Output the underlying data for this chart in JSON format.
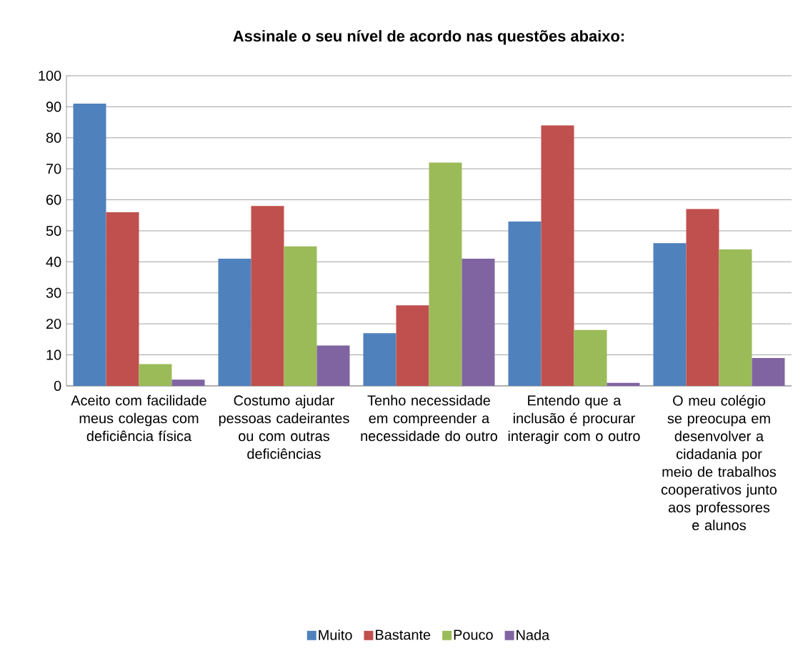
{
  "chart_data": {
    "type": "bar",
    "title": "Assinale o seu nível de acordo nas questões abaixo:",
    "categories": [
      "Aceito com facilidade meus colegas com deficiência física",
      "Costumo ajudar pessoas cadeirantes ou com outras deficiências",
      "Tenho necessidade em compreender a necessidade do outro",
      "Entendo que a inclusão é procurar interagir com o outro",
      "O meu colégio se preocupa em desenvolver a cidadania por meio de trabalhos cooperativos junto aos professores e alunos"
    ],
    "series": [
      {
        "name": "Muito",
        "color": "#4f81bd",
        "values": [
          91,
          41,
          17,
          53,
          46
        ]
      },
      {
        "name": "Bastante",
        "color": "#c0504d",
        "values": [
          56,
          58,
          26,
          84,
          57
        ]
      },
      {
        "name": "Pouco",
        "color": "#9bbb59",
        "values": [
          7,
          45,
          72,
          18,
          44
        ]
      },
      {
        "name": "Nada",
        "color": "#8064a2",
        "values": [
          2,
          13,
          41,
          1,
          9
        ]
      }
    ],
    "ylim": [
      0,
      100
    ],
    "yticks": [
      0,
      10,
      20,
      30,
      40,
      50,
      60,
      70,
      80,
      90,
      100
    ],
    "grid": "y",
    "legend": "bottom"
  }
}
